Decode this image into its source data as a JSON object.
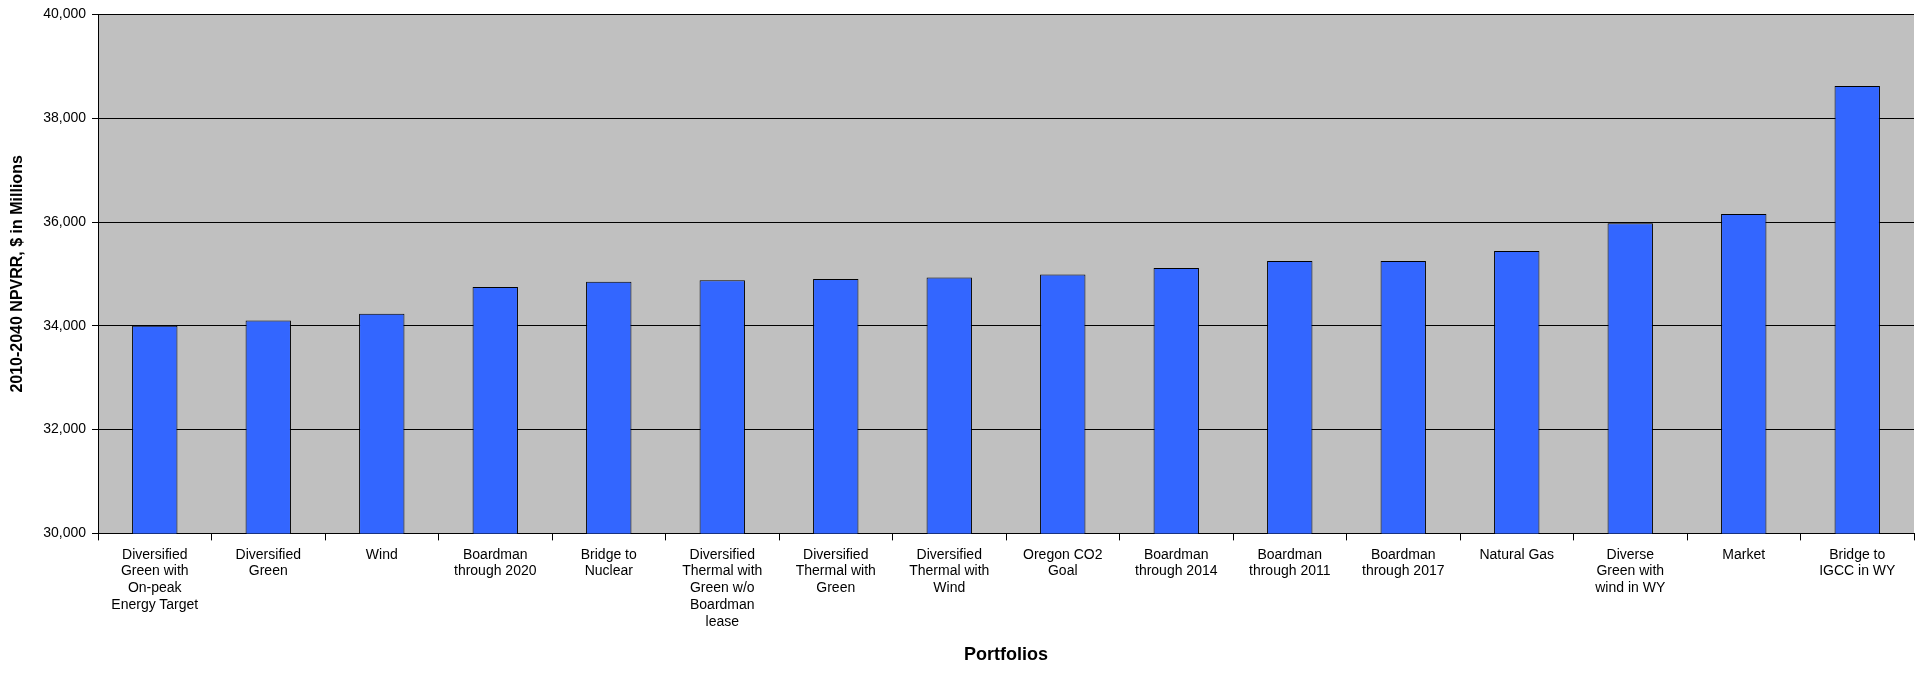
{
  "chart_data": {
    "type": "bar",
    "xlabel": "Portfolios",
    "ylabel": "2010-2040 NPVRR, $ in Millions",
    "categories": [
      "Diversified Green with On-peak Energy Target",
      "Diversified Green",
      "Wind",
      "Boardman through 2020",
      "Bridge to Nuclear",
      "Diversified Thermal with Green w/o Boardman lease",
      "Diversified Thermal with Green",
      "Diversified Thermal with Wind",
      "Oregon CO2 Goal",
      "Boardman through 2014",
      "Boardman through 2011",
      "Boardman through 2017",
      "Natural Gas",
      "Diverse Green with wind in WY",
      "Market",
      "Bridge to IGCC in WY"
    ],
    "values": [
      34000,
      34100,
      34230,
      34750,
      34850,
      34880,
      34900,
      34930,
      34990,
      35115,
      35250,
      35250,
      35440,
      35975,
      36155,
      38620
    ],
    "color": "#3366ff",
    "ylim": [
      30000,
      40000
    ],
    "yticks": [
      {
        "value": 30000,
        "label": "30,000"
      },
      {
        "value": 32000,
        "label": "32,000"
      },
      {
        "value": 34000,
        "label": "34,000"
      },
      {
        "value": 36000,
        "label": "36,000"
      },
      {
        "value": 38000,
        "label": "38,000"
      },
      {
        "value": 40000,
        "label": "40,000"
      }
    ],
    "grid": "y",
    "legend": false
  }
}
